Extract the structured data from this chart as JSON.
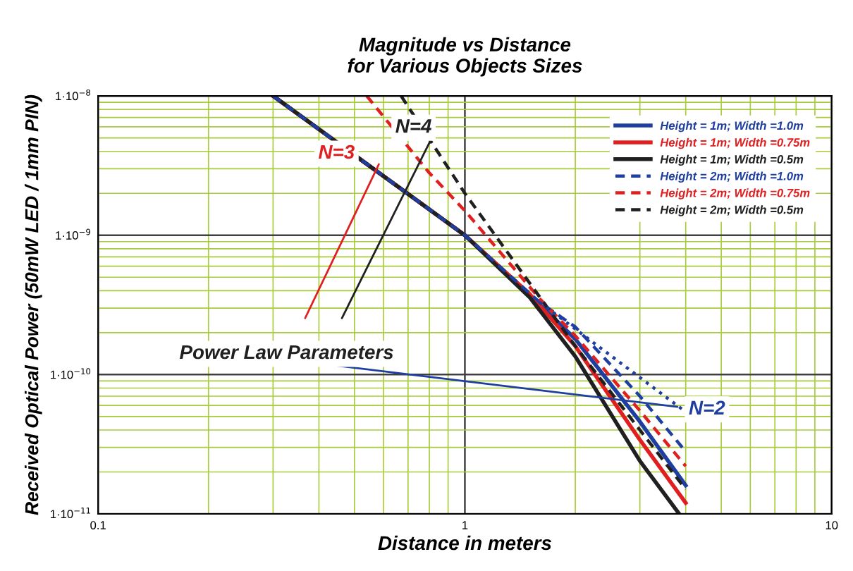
{
  "chart_data": {
    "type": "line",
    "title": "Magnitude vs Distance\nfor Various Objects Sizes",
    "xlabel": "Distance in meters",
    "ylabel": "Received Optical Power (50mW LED / 1mm PIN)",
    "log": "xy",
    "xlim": [
      0.1,
      10
    ],
    "ylim": [
      1e-11,
      1e-08
    ],
    "xticks": [
      {
        "value": 0.1,
        "label": "0.1"
      },
      {
        "value": 0.2,
        "label": null
      },
      {
        "value": 0.3,
        "label": null
      },
      {
        "value": 0.4,
        "label": null
      },
      {
        "value": 0.5,
        "label": null
      },
      {
        "value": 0.6,
        "label": null
      },
      {
        "value": 0.7,
        "label": null
      },
      {
        "value": 0.8,
        "label": null
      },
      {
        "value": 0.9,
        "label": null
      },
      {
        "value": 1,
        "label": "1"
      },
      {
        "value": 2,
        "label": null
      },
      {
        "value": 3,
        "label": null
      },
      {
        "value": 4,
        "label": null
      },
      {
        "value": 5,
        "label": null
      },
      {
        "value": 6,
        "label": null
      },
      {
        "value": 7,
        "label": null
      },
      {
        "value": 8,
        "label": null
      },
      {
        "value": 9,
        "label": null
      },
      {
        "value": 10,
        "label": "10"
      }
    ],
    "yticks": [
      {
        "value": 1e-11,
        "label": "1·10$^{−11}$"
      },
      {
        "value": 2e-11,
        "label": null
      },
      {
        "value": 3e-11,
        "label": null
      },
      {
        "value": 4e-11,
        "label": null
      },
      {
        "value": 5e-11,
        "label": null
      },
      {
        "value": 6e-11,
        "label": null
      },
      {
        "value": 7e-11,
        "label": null
      },
      {
        "value": 8e-11,
        "label": null
      },
      {
        "value": 9e-11,
        "label": null
      },
      {
        "value": 1e-10,
        "label": "1·10$^{−10}$"
      },
      {
        "value": 2e-10,
        "label": null
      },
      {
        "value": 3e-10,
        "label": null
      },
      {
        "value": 4e-10,
        "label": null
      },
      {
        "value": 5e-10,
        "label": null
      },
      {
        "value": 6e-10,
        "label": null
      },
      {
        "value": 7e-10,
        "label": null
      },
      {
        "value": 8e-10,
        "label": null
      },
      {
        "value": 9e-10,
        "label": null
      },
      {
        "value": 1e-09,
        "label": "1·10$^{−9}$"
      },
      {
        "value": 2e-09,
        "label": null
      },
      {
        "value": 3e-09,
        "label": null
      },
      {
        "value": 4e-09,
        "label": null
      },
      {
        "value": 5e-09,
        "label": null
      },
      {
        "value": 6e-09,
        "label": null
      },
      {
        "value": 7e-09,
        "label": null
      },
      {
        "value": 8e-09,
        "label": null
      },
      {
        "value": 9e-09,
        "label": null
      },
      {
        "value": 1e-08,
        "label": "1·10$^{−8}$"
      }
    ],
    "grid": true,
    "legend": "top right",
    "marker": "none",
    "series": [
      {
        "name": "Height = 1m; Width =1.0m",
        "color": "#1f3fa0",
        "line_style": "solid",
        "x": [
          0.3,
          1.0,
          1.6,
          2.0,
          3.0,
          4.0
        ],
        "values": [
          1e-08,
          1e-09,
          3.2e-10,
          1.8e-10,
          4.6e-11,
          1.6e-11
        ]
      },
      {
        "name": "Height = 1m; Width =0.75m",
        "color": "#e02020",
        "line_style": "solid",
        "x": [
          0.3,
          1.0,
          1.5,
          2.0,
          3.0,
          4.0
        ],
        "values": [
          1e-08,
          1e-09,
          3.8e-10,
          1.6e-10,
          3.4e-11,
          1.2e-11
        ]
      },
      {
        "name": "Height = 1m; Width =0.5m",
        "color": "#202020",
        "line_style": "solid",
        "x": [
          0.3,
          1.0,
          1.5,
          2.0,
          3.0,
          3.84
        ],
        "values": [
          1e-08,
          1e-09,
          3.6e-10,
          1.35e-10,
          2.4e-11,
          1e-11
        ]
      },
      {
        "name": "Height = 2m; Width =1.0m",
        "color": "#1f3fa0",
        "line_style": "dashed",
        "x": [
          0.3,
          1.0,
          1.6,
          2.0,
          3.0,
          4.0
        ],
        "values": [
          1e-08,
          1e-09,
          3.3e-10,
          2.2e-10,
          7e-11,
          2.8e-11
        ]
      },
      {
        "name": "Height = 2m; Width =0.75m",
        "color": "#e02020",
        "line_style": "dashed",
        "x": [
          0.54,
          0.8,
          1.0,
          1.6,
          2.0,
          3.0,
          4.0
        ],
        "values": [
          1e-08,
          2.8e-09,
          1.5e-09,
          3.5e-10,
          1.9e-10,
          5.5e-11,
          2.2e-11
        ]
      },
      {
        "name": "Height = 2m; Width =0.5m",
        "color": "#202020",
        "line_style": "dashed",
        "x": [
          0.67,
          1.0,
          1.6,
          2.0,
          3.0,
          4.0
        ],
        "values": [
          1e-08,
          2e-09,
          3.6e-10,
          1.6e-10,
          4e-11,
          1.5e-11
        ]
      },
      {
        "color": "#1f3fa0",
        "line_style": "dotted",
        "x": [
          1.6,
          4.0
        ],
        "values": [
          3.3e-10,
          5.4e-11
        ]
      }
    ],
    "annotations": [
      "Power Law Parameters",
      "N=3",
      "N=4",
      "N=2"
    ]
  }
}
